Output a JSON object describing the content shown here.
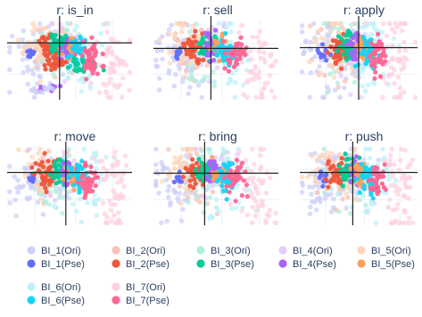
{
  "chart_data": {
    "type": "scatter",
    "panels": [
      {
        "title": "r: is_in"
      },
      {
        "title": "r: sell"
      },
      {
        "title": "r: apply"
      },
      {
        "title": "r: move"
      },
      {
        "title": "r: bring"
      },
      {
        "title": "r: push"
      }
    ],
    "grid": true,
    "axes_visible": false,
    "legend_position": "bottom",
    "series": [
      {
        "name": "BI_1(Ori)",
        "color": "#cdd0f8"
      },
      {
        "name": "BI_1(Pse)",
        "color": "#636efa"
      },
      {
        "name": "BI_2(Ori)",
        "color": "#f8c1b5"
      },
      {
        "name": "BI_2(Pse)",
        "color": "#ef553b"
      },
      {
        "name": "BI_3(Ori)",
        "color": "#b0eedd"
      },
      {
        "name": "BI_3(Pse)",
        "color": "#00cc96"
      },
      {
        "name": "BI_4(Ori)",
        "color": "#e2cdfb"
      },
      {
        "name": "BI_4(Pse)",
        "color": "#ab63fa"
      },
      {
        "name": "BI_5(Ori)",
        "color": "#fed7be"
      },
      {
        "name": "BI_5(Pse)",
        "color": "#ffa15a"
      },
      {
        "name": "BI_6(Ori)",
        "color": "#bcf1fa"
      },
      {
        "name": "BI_6(Pse)",
        "color": "#19d3f3"
      },
      {
        "name": "BI_7(Ori)",
        "color": "#ffd1e0"
      },
      {
        "name": "BI_7(Pse)",
        "color": "#ff6692"
      }
    ]
  }
}
